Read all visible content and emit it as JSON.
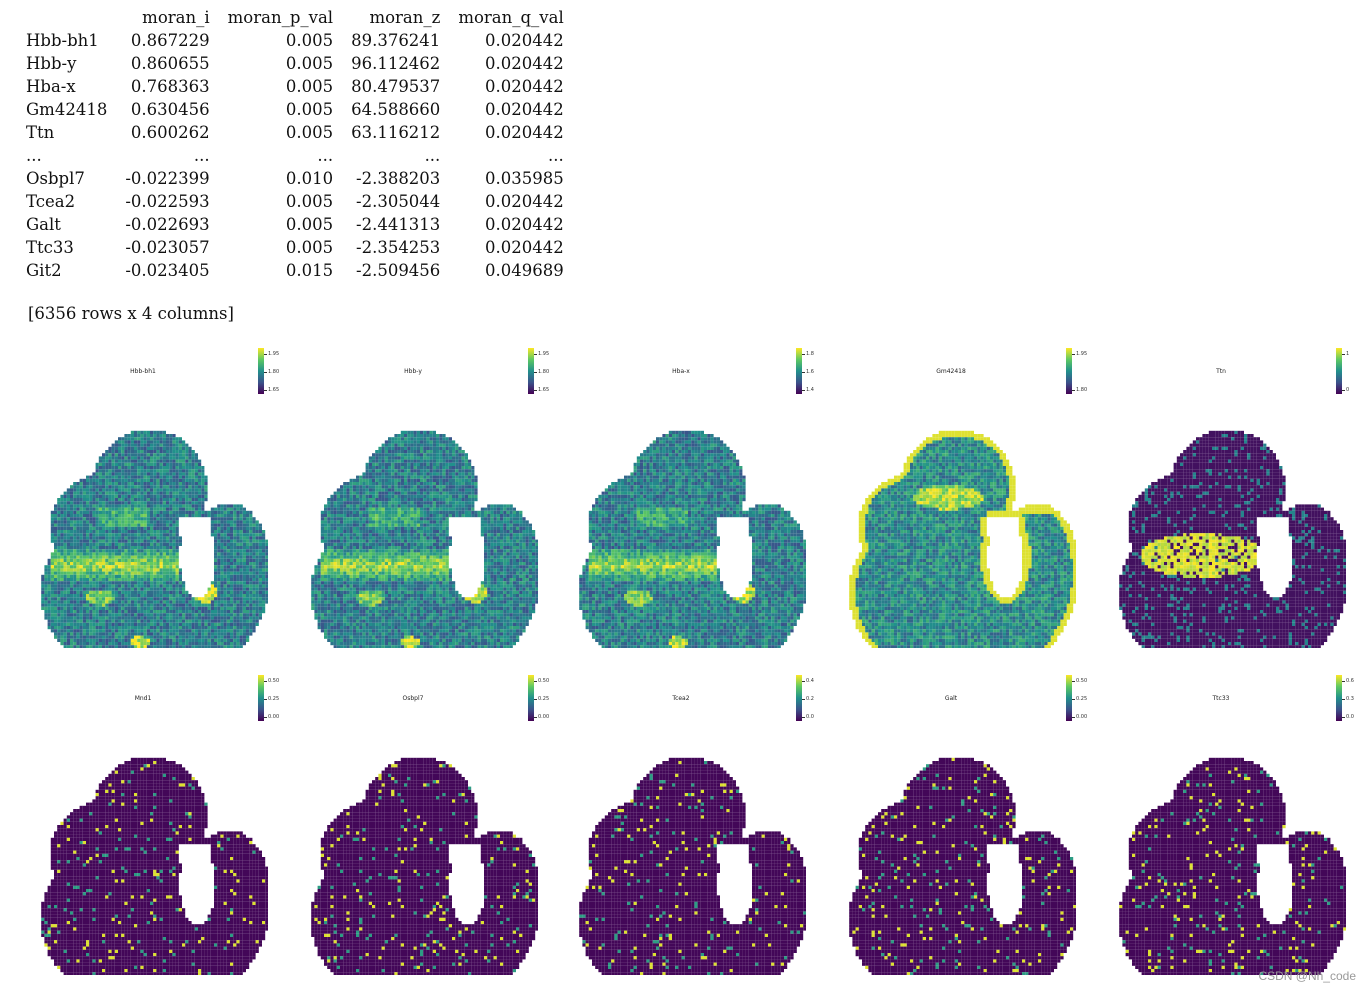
{
  "dataframe": {
    "columns": [
      "moran_i",
      "moran_p_val",
      "moran_z",
      "moran_q_val"
    ],
    "rows": [
      {
        "gene": "Hbb-bh1",
        "moran_i": "0.867229",
        "moran_p_val": "0.005",
        "moran_z": "89.376241",
        "moran_q_val": "0.020442"
      },
      {
        "gene": "Hbb-y",
        "moran_i": "0.860655",
        "moran_p_val": "0.005",
        "moran_z": "96.112462",
        "moran_q_val": "0.020442"
      },
      {
        "gene": "Hba-x",
        "moran_i": "0.768363",
        "moran_p_val": "0.005",
        "moran_z": "80.479537",
        "moran_q_val": "0.020442"
      },
      {
        "gene": "Gm42418",
        "moran_i": "0.630456",
        "moran_p_val": "0.005",
        "moran_z": "64.588660",
        "moran_q_val": "0.020442"
      },
      {
        "gene": "Ttn",
        "moran_i": "0.600262",
        "moran_p_val": "0.005",
        "moran_z": "63.116212",
        "moran_q_val": "0.020442"
      },
      {
        "gene": "...",
        "moran_i": "...",
        "moran_p_val": "...",
        "moran_z": "...",
        "moran_q_val": "..."
      },
      {
        "gene": "Osbpl7",
        "moran_i": "-0.022399",
        "moran_p_val": "0.010",
        "moran_z": "-2.388203",
        "moran_q_val": "0.035985"
      },
      {
        "gene": "Tcea2",
        "moran_i": "-0.022593",
        "moran_p_val": "0.005",
        "moran_z": "-2.305044",
        "moran_q_val": "0.020442"
      },
      {
        "gene": "Galt",
        "moran_i": "-0.022693",
        "moran_p_val": "0.005",
        "moran_z": "-2.441313",
        "moran_q_val": "0.020442"
      },
      {
        "gene": "Ttc33",
        "moran_i": "-0.023057",
        "moran_p_val": "0.005",
        "moran_z": "-2.354253",
        "moran_q_val": "0.020442"
      },
      {
        "gene": "Git2",
        "moran_i": "-0.023405",
        "moran_p_val": "0.015",
        "moran_z": "-2.509456",
        "moran_q_val": "0.049689"
      }
    ],
    "shape_text": "[6356 rows x 4 columns]"
  },
  "panels": [
    {
      "title": "Hbb-bh1",
      "ticks": [
        "1.95",
        "1.80",
        "1.65"
      ],
      "pattern": "blood"
    },
    {
      "title": "Hbb-y",
      "ticks": [
        "1.95",
        "1.80",
        "1.65"
      ],
      "pattern": "blood"
    },
    {
      "title": "Hba-x",
      "ticks": [
        "1.8",
        "1.6",
        "1.4"
      ],
      "pattern": "blood"
    },
    {
      "title": "Gm42418",
      "ticks": [
        "1.95",
        "1.80"
      ],
      "pattern": "edge"
    },
    {
      "title": "Ttn",
      "ticks": [
        "1",
        "0"
      ],
      "pattern": "heart"
    },
    {
      "title": "Mnd1",
      "ticks": [
        "0.50",
        "0.25",
        "0.00"
      ],
      "pattern": "sparse"
    },
    {
      "title": "Osbpl7",
      "ticks": [
        "0.50",
        "0.25",
        "0.00"
      ],
      "pattern": "sparse"
    },
    {
      "title": "Tcea2",
      "ticks": [
        "0.4",
        "0.2",
        "0.0"
      ],
      "pattern": "sparse"
    },
    {
      "title": "Galt",
      "ticks": [
        "0.50",
        "0.25",
        "0.00"
      ],
      "pattern": "sparse"
    },
    {
      "title": "Ttc33",
      "ticks": [
        "0.6",
        "0.3",
        "0.0"
      ],
      "pattern": "sparse"
    }
  ],
  "colormap": [
    "#440154",
    "#3b528b",
    "#21918c",
    "#5ec962",
    "#fde725"
  ],
  "watermark": "CSDN @Nh_code"
}
